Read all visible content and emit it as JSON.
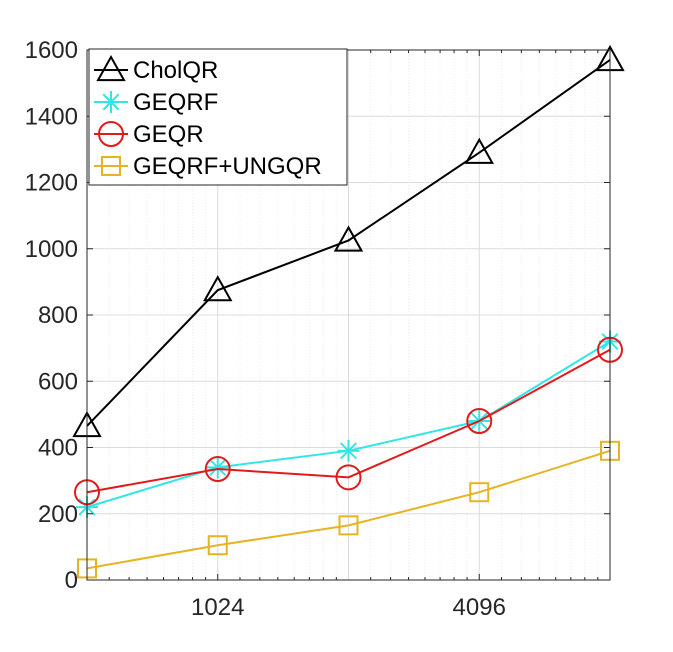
{
  "chart_data": {
    "type": "line",
    "x_scale": "log2",
    "x": [
      512,
      1024,
      2048,
      4096,
      8192
    ],
    "xticks": [
      1024,
      4096
    ],
    "xtick_labels": [
      "1024",
      "4096"
    ],
    "ylim": [
      0,
      1600
    ],
    "yticks": [
      0,
      200,
      400,
      600,
      800,
      1000,
      1200,
      1400,
      1600
    ],
    "ytick_labels": [
      "0",
      "200",
      "400",
      "600",
      "800",
      "1000",
      "1200",
      "1400",
      "1600"
    ],
    "grid": true,
    "legend_position": "top-left",
    "series": [
      {
        "name": "CholQR",
        "color": "#000000",
        "marker": "triangle",
        "values": [
          465,
          875,
          1025,
          1290,
          1570
        ]
      },
      {
        "name": "GEQRF",
        "color": "#33e6e6",
        "marker": "asterisk",
        "values": [
          220,
          340,
          390,
          480,
          720
        ]
      },
      {
        "name": "GEQR",
        "color": "#e31a1c",
        "marker": "circle",
        "values": [
          265,
          335,
          310,
          480,
          695
        ]
      },
      {
        "name": "GEQRF+UNGQR",
        "color": "#e6b422",
        "marker": "square",
        "values": [
          35,
          105,
          165,
          265,
          390
        ]
      }
    ]
  }
}
